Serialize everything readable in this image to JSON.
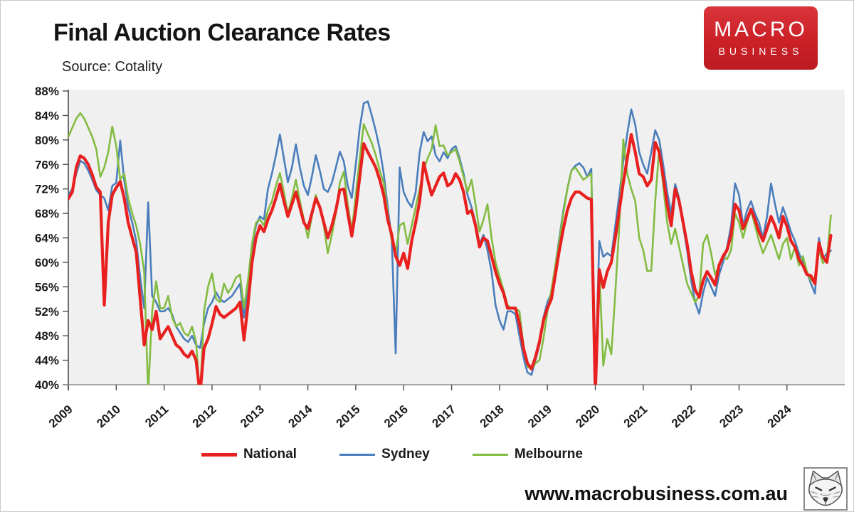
{
  "header": {
    "title": "Final Auction Clearance Rates",
    "source": "Source: Cotality"
  },
  "brand": {
    "line1": "MACRO",
    "line2": "BUSINESS",
    "bg_color": "#cb2026"
  },
  "footer": {
    "website": "www.macrobusiness.com.au",
    "fox_logo": "fox-head-sketch"
  },
  "chart_data": {
    "type": "line",
    "title": "Final Auction Clearance Rates",
    "xlabel": "",
    "ylabel": "",
    "ylim": [
      40,
      88
    ],
    "y_tick_step": 4,
    "grid": false,
    "plot_bg": "#f1f0f1",
    "legend_position": "bottom",
    "x_start": "2009-01",
    "x_interval": "monthly",
    "x_tick_labels": [
      "2009",
      "2010",
      "2011",
      "2012",
      "2013",
      "2014",
      "2015",
      "2016",
      "2017",
      "2018",
      "2019",
      "2020",
      "2021",
      "2022",
      "2023",
      "2024"
    ],
    "y_ticks": [
      {
        "label": "88%",
        "value": 88
      },
      {
        "label": "84%",
        "value": 84
      },
      {
        "label": "80%",
        "value": 80
      },
      {
        "label": "76%",
        "value": 76
      },
      {
        "label": "72%",
        "value": 72
      },
      {
        "label": "68%",
        "value": 68
      },
      {
        "label": "64%",
        "value": 64
      },
      {
        "label": "60%",
        "value": 60
      },
      {
        "label": "56%",
        "value": 56
      },
      {
        "label": "52%",
        "value": 52
      },
      {
        "label": "48%",
        "value": 48
      },
      {
        "label": "44%",
        "value": 44
      },
      {
        "label": "40%",
        "value": 40
      }
    ],
    "series": [
      {
        "name": "National",
        "color": "#e8201f",
        "width": 4.2,
        "z": 3,
        "values": [
          70.4,
          71.5,
          75.5,
          77.4,
          77.0,
          76.0,
          74.3,
          72.3,
          71.5,
          53.0,
          66.5,
          71.0,
          72.2,
          73.2,
          70.5,
          66.5,
          64.0,
          61.7,
          54.0,
          46.5,
          50.5,
          49.0,
          52.0,
          47.5,
          48.5,
          49.5,
          48.0,
          46.5,
          46.0,
          45.0,
          44.5,
          45.5,
          44.0,
          38.5,
          46.0,
          47.5,
          50.0,
          52.8,
          51.5,
          51.0,
          51.5,
          52.0,
          52.5,
          53.5,
          47.3,
          53.0,
          60.0,
          64.0,
          66.0,
          65.0,
          67.0,
          68.5,
          70.5,
          72.8,
          70.0,
          67.5,
          69.5,
          71.5,
          69.0,
          66.5,
          65.5,
          68.0,
          70.5,
          69.0,
          66.5,
          64.0,
          66.0,
          68.5,
          71.8,
          72.0,
          68.0,
          64.3,
          68.5,
          74.0,
          79.4,
          78.0,
          76.8,
          75.5,
          73.5,
          71.0,
          67.0,
          64.5,
          61.0,
          59.5,
          61.5,
          59.0,
          63.5,
          66.5,
          70.0,
          76.3,
          73.5,
          71.0,
          72.5,
          74.0,
          74.6,
          72.5,
          73.0,
          74.5,
          73.5,
          71.5,
          68.0,
          68.5,
          66.0,
          62.5,
          64.0,
          63.5,
          61.0,
          58.5,
          56.5,
          55.0,
          52.5,
          52.5,
          52.5,
          50.0,
          46.0,
          43.5,
          42.6,
          44.5,
          47.0,
          50.5,
          52.5,
          54.0,
          58.0,
          62.0,
          65.5,
          68.5,
          70.5,
          71.5,
          71.5,
          71.0,
          70.5,
          70.3,
          38.5,
          58.8,
          55.9,
          58.5,
          60.0,
          64.0,
          68.5,
          73.0,
          77.0,
          80.9,
          78.0,
          74.5,
          74.0,
          72.5,
          73.5,
          79.6,
          78.0,
          74.0,
          69.5,
          66.0,
          72.0,
          70.0,
          66.5,
          63.0,
          58.5,
          55.5,
          54.3,
          57.0,
          58.5,
          57.5,
          56.3,
          59.5,
          61.0,
          62.0,
          64.5,
          69.5,
          68.5,
          65.5,
          67.0,
          68.7,
          67.0,
          65.0,
          63.5,
          65.5,
          67.5,
          66.0,
          64.0,
          67.5,
          65.9,
          63.5,
          62.5,
          60.5,
          59.5,
          58.0,
          57.8,
          56.5,
          63.2,
          60.9,
          60.0,
          64.4
        ]
      },
      {
        "name": "Sydney",
        "color": "#4a7ebb",
        "width": 2.6,
        "z": 1,
        "values": [
          71.0,
          72.0,
          74.5,
          76.6,
          76.2,
          75.0,
          73.5,
          71.8,
          71.0,
          70.5,
          68.5,
          72.5,
          73.0,
          79.9,
          73.5,
          69.0,
          66.5,
          63.5,
          57.5,
          52.5,
          69.8,
          54.5,
          53.5,
          52.0,
          52.0,
          52.5,
          51.5,
          49.5,
          48.5,
          47.5,
          47.0,
          48.0,
          46.5,
          46.0,
          50.0,
          52.5,
          53.5,
          55.1,
          54.0,
          53.5,
          54.0,
          54.5,
          55.5,
          56.5,
          51.0,
          56.0,
          62.5,
          66.0,
          67.5,
          67.0,
          72.0,
          74.5,
          77.5,
          80.9,
          77.0,
          73.1,
          75.5,
          79.3,
          75.5,
          72.5,
          71.0,
          74.0,
          77.5,
          75.0,
          72.0,
          71.5,
          73.0,
          75.5,
          78.1,
          76.5,
          72.5,
          70.5,
          76.0,
          82.0,
          86.0,
          86.3,
          84.0,
          81.5,
          78.5,
          74.5,
          69.0,
          64.0,
          45.1,
          75.5,
          71.5,
          70.0,
          69.0,
          71.5,
          78.0,
          81.3,
          79.8,
          80.6,
          77.5,
          76.5,
          78.0,
          77.0,
          78.5,
          79.0,
          77.0,
          74.5,
          71.0,
          69.0,
          66.5,
          63.0,
          64.5,
          62.0,
          58.5,
          53.0,
          50.5,
          49.0,
          52.0,
          52.0,
          51.5,
          48.0,
          44.5,
          42.0,
          41.6,
          44.0,
          46.5,
          51.0,
          53.5,
          55.0,
          59.5,
          64.0,
          68.5,
          72.0,
          75.0,
          75.8,
          76.2,
          75.5,
          74.0,
          75.3,
          40.7,
          63.5,
          60.9,
          61.5,
          61.0,
          66.0,
          71.0,
          76.5,
          81.0,
          85.0,
          82.5,
          78.0,
          76.0,
          74.5,
          78.0,
          81.6,
          80.0,
          76.0,
          71.5,
          68.0,
          72.8,
          70.5,
          66.0,
          62.0,
          57.0,
          53.5,
          51.6,
          55.0,
          57.5,
          56.0,
          54.5,
          58.0,
          60.0,
          62.5,
          66.0,
          72.9,
          71.0,
          66.0,
          68.5,
          70.0,
          68.0,
          66.5,
          64.0,
          67.5,
          72.9,
          69.5,
          66.5,
          69.0,
          67.1,
          65.0,
          63.5,
          61.5,
          60.0,
          58.5,
          56.5,
          54.9,
          64.0,
          60.5,
          61.5,
          61.9
        ]
      },
      {
        "name": "Melbourne",
        "color": "#82bc41",
        "width": 2.6,
        "z": 2,
        "values": [
          80.5,
          82.0,
          83.5,
          84.4,
          83.5,
          82.0,
          80.5,
          78.5,
          74.0,
          75.5,
          78.0,
          82.2,
          79.0,
          73.5,
          74.5,
          70.5,
          68.0,
          66.0,
          63.0,
          58.5,
          38.5,
          52.0,
          56.9,
          52.5,
          52.5,
          54.5,
          51.0,
          49.5,
          50.1,
          48.5,
          48.0,
          49.5,
          47.0,
          38.0,
          52.0,
          56.0,
          58.2,
          54.0,
          53.5,
          56.5,
          55.0,
          56.0,
          57.5,
          58.0,
          52.5,
          57.0,
          63.0,
          66.5,
          67.0,
          66.0,
          68.5,
          70.0,
          72.5,
          74.6,
          71.5,
          68.0,
          70.5,
          73.5,
          70.0,
          67.0,
          64.0,
          67.5,
          71.0,
          69.0,
          66.0,
          61.5,
          64.5,
          68.0,
          73.0,
          74.8,
          69.5,
          65.0,
          71.0,
          77.0,
          82.6,
          81.0,
          79.5,
          77.5,
          75.0,
          73.0,
          68.0,
          63.5,
          61.5,
          66.0,
          66.5,
          63.0,
          66.0,
          69.0,
          72.0,
          75.0,
          77.0,
          78.5,
          82.4,
          79.0,
          79.1,
          77.5,
          78.0,
          78.5,
          76.5,
          74.0,
          71.5,
          73.5,
          69.5,
          65.0,
          67.0,
          69.5,
          64.0,
          60.0,
          57.7,
          55.5,
          53.0,
          52.5,
          52.5,
          52.0,
          46.5,
          43.0,
          42.5,
          43.5,
          44.0,
          47.5,
          52.0,
          55.5,
          59.5,
          63.5,
          68.0,
          72.0,
          75.0,
          75.5,
          74.5,
          73.5,
          74.0,
          74.5,
          38.0,
          58.9,
          43.1,
          47.5,
          45.0,
          55.0,
          66.0,
          80.1,
          74.5,
          72.0,
          70.0,
          64.0,
          62.0,
          58.6,
          58.6,
          70.0,
          78.6,
          72.5,
          66.5,
          63.0,
          65.5,
          62.5,
          59.5,
          56.5,
          55.0,
          53.5,
          54.5,
          63.0,
          64.5,
          61.5,
          58.0,
          59.5,
          61.0,
          60.5,
          62.0,
          68.0,
          66.5,
          64.0,
          66.5,
          68.5,
          66.0,
          63.5,
          61.5,
          63.0,
          64.5,
          62.5,
          60.5,
          63.0,
          64.0,
          60.5,
          62.5,
          59.5,
          61.0,
          58.5,
          57.0,
          57.5,
          62.0,
          59.9,
          60.5,
          67.7
        ]
      }
    ]
  }
}
